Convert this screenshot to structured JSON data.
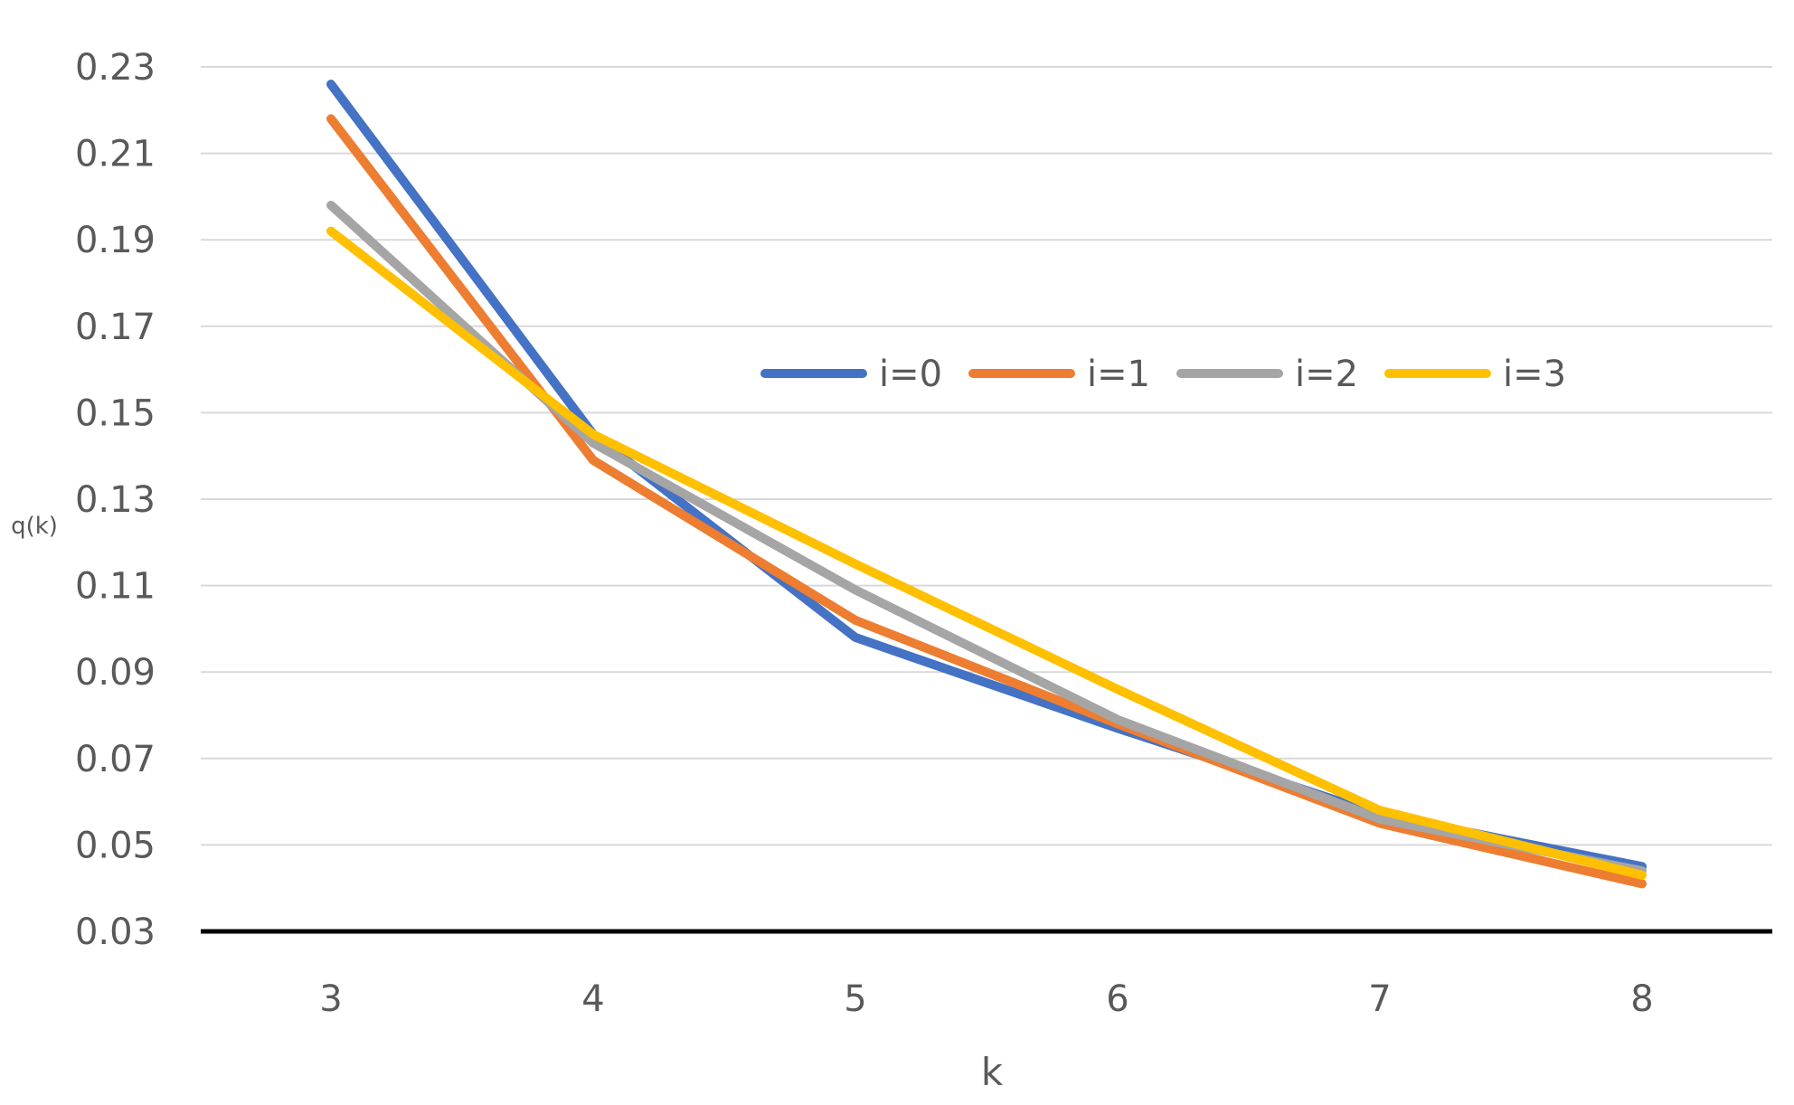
{
  "chart_data": {
    "type": "line",
    "title": "",
    "xlabel": "k",
    "ylabel": "q(k)",
    "categories": [
      "3",
      "4",
      "5",
      "6",
      "7",
      "8"
    ],
    "ylim": [
      0.03,
      0.23
    ],
    "yticks": [
      "0.03",
      "0.05",
      "0.07",
      "0.09",
      "0.11",
      "0.13",
      "0.15",
      "0.17",
      "0.19",
      "0.21",
      "0.23"
    ],
    "grid": true,
    "legend_position": "inside-top-right",
    "series": [
      {
        "name": "i=0",
        "color": "#4472C4",
        "values": [
          0.226,
          0.145,
          0.098,
          0.077,
          0.057,
          0.045
        ]
      },
      {
        "name": "i=1",
        "color": "#ED7D31",
        "values": [
          0.218,
          0.139,
          0.102,
          0.078,
          0.055,
          0.041
        ]
      },
      {
        "name": "i=2",
        "color": "#A5A5A5",
        "values": [
          0.198,
          0.143,
          0.109,
          0.079,
          0.056,
          0.044
        ]
      },
      {
        "name": "i=3",
        "color": "#FFC000",
        "values": [
          0.192,
          0.145,
          0.115,
          0.086,
          0.058,
          0.043
        ]
      }
    ]
  }
}
